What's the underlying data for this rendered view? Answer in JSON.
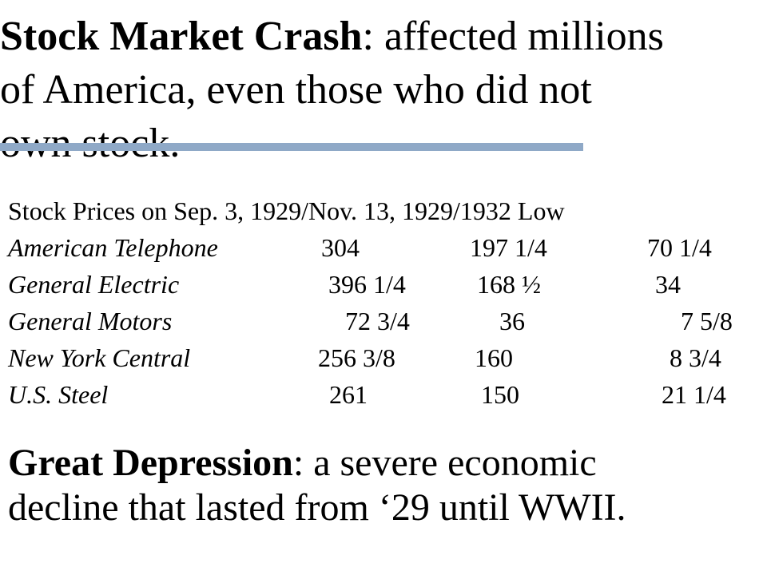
{
  "title": {
    "term": "Stock Market Crash",
    "rest_line1": ": affected millions",
    "line2": "of America, even those who did not",
    "line3": "own stock."
  },
  "table": {
    "header": "Stock Prices on  Sep. 3, 1929/Nov. 13, 1929/1932 Low",
    "rows": [
      {
        "company": "American Telephone",
        "sep_1929": "304",
        "nov_1929": "197 1/4",
        "low_1932": "70 1/4"
      },
      {
        "company": "General Electric",
        "sep_1929": "396 1/4",
        "nov_1929": "168 ½",
        "low_1932": "34"
      },
      {
        "company": "General Motors",
        "sep_1929": "72 3/4",
        "nov_1929": "36",
        "low_1932": "7 5/8"
      },
      {
        "company": "New York Central",
        "sep_1929": "256 3/8",
        "nov_1929": "160",
        "low_1932": "8 3/4"
      },
      {
        "company": "U.S. Steel",
        "sep_1929": "261",
        "nov_1929": "150",
        "low_1932": "21 1/4"
      }
    ]
  },
  "definition": {
    "term": "Great Depression",
    "rest_line1": ": a severe economic",
    "line2": "decline that lasted from ‘29 until WWII."
  },
  "colors": {
    "rule": "#8fa9c7",
    "text": "#000000",
    "background": "#ffffff"
  }
}
